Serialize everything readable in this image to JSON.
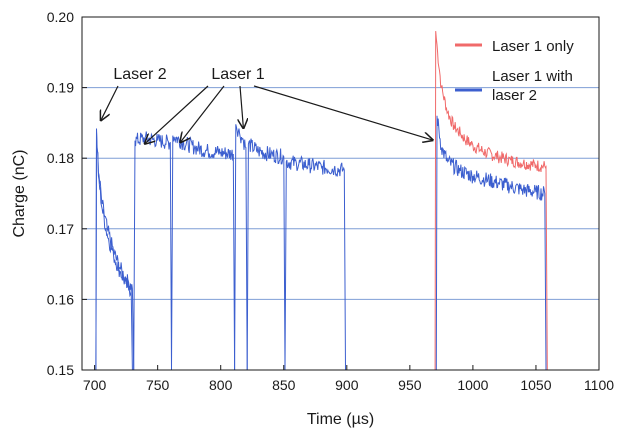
{
  "chart_data": {
    "type": "line",
    "xlabel": "Time (µs)",
    "ylabel": "Charge (nC)",
    "xlim": [
      690,
      1100
    ],
    "ylim": [
      0.15,
      0.2
    ],
    "xticks": [
      700,
      750,
      800,
      850,
      900,
      950,
      1000,
      1050,
      1100
    ],
    "yticks": [
      0.15,
      0.16,
      0.17,
      0.18,
      0.19,
      0.2
    ],
    "xtick_labels": [
      "700",
      "750",
      "800",
      "850",
      "900",
      "950",
      "1000",
      "1050",
      "1100"
    ],
    "ytick_labels": [
      "0.15",
      "0.16",
      "0.17",
      "0.18",
      "0.19",
      "0.20"
    ],
    "grid": "horizontal",
    "legend_position": "top-right",
    "colors": {
      "laser1_only": "#f06a6a",
      "laser1_with_laser2": "#3c5fcf",
      "grid": "#7f9ed6"
    },
    "annotations": [
      {
        "text": "Laser 2",
        "arrow_targets": [
          [
            705,
            0.1848
          ]
        ]
      },
      {
        "text": "Laser 1",
        "arrow_targets": [
          [
            740,
            0.1815
          ],
          [
            768,
            0.1817
          ],
          [
            818,
            0.1837
          ],
          [
            968,
            0.182
          ]
        ]
      }
    ],
    "series": [
      {
        "name": "Laser 1 only",
        "color": "#f06a6a",
        "points": [
          [
            970,
            0.15
          ],
          [
            970.5,
            0.198
          ],
          [
            972,
            0.195
          ],
          [
            975,
            0.19
          ],
          [
            980,
            0.1865
          ],
          [
            985,
            0.1845
          ],
          [
            990,
            0.1835
          ],
          [
            995,
            0.1825
          ],
          [
            1000,
            0.1818
          ],
          [
            1010,
            0.1808
          ],
          [
            1020,
            0.1802
          ],
          [
            1030,
            0.1797
          ],
          [
            1040,
            0.1793
          ],
          [
            1050,
            0.179
          ],
          [
            1058,
            0.1788
          ],
          [
            1059,
            0.15
          ]
        ]
      },
      {
        "name": "Laser 1 with laser 2",
        "color": "#3c5fcf",
        "segments": [
          [
            [
              701,
              0.15
            ],
            [
              701.5,
              0.1838
            ],
            [
              703,
              0.178
            ],
            [
              706,
              0.1735
            ],
            [
              710,
              0.17
            ],
            [
              715,
              0.1668
            ],
            [
              720,
              0.1645
            ],
            [
              725,
              0.1628
            ],
            [
              730,
              0.1615
            ],
            [
              731,
              0.15
            ]
          ],
          [
            [
              701,
              0.15
            ],
            [
              701.5,
              0.1842
            ],
            [
              703,
              0.1775
            ],
            [
              706,
              0.1728
            ],
            [
              710,
              0.1692
            ],
            [
              715,
              0.1663
            ],
            [
              720,
              0.164
            ],
            [
              725,
              0.1622
            ],
            [
              729,
              0.1612
            ],
            [
              730,
              0.15
            ]
          ],
          [
            [
              731,
              0.15
            ],
            [
              732,
              0.1825
            ],
            [
              740,
              0.1828
            ],
            [
              750,
              0.1825
            ],
            [
              760,
              0.1822
            ],
            [
              761,
              0.15
            ]
          ],
          [
            [
              761,
              0.15
            ],
            [
              762,
              0.1832
            ],
            [
              770,
              0.1822
            ],
            [
              780,
              0.1815
            ],
            [
              790,
              0.181
            ],
            [
              800,
              0.1808
            ],
            [
              810,
              0.1806
            ],
            [
              811,
              0.15
            ]
          ],
          [
            [
              811,
              0.15
            ],
            [
              812,
              0.1848
            ],
            [
              815,
              0.1835
            ],
            [
              818,
              0.1825
            ],
            [
              820,
              0.1815
            ],
            [
              821,
              0.15
            ]
          ],
          [
            [
              821,
              0.15
            ],
            [
              822,
              0.182
            ],
            [
              830,
              0.181
            ],
            [
              840,
              0.1805
            ],
            [
              850,
              0.1802
            ],
            [
              851,
              0.15
            ]
          ],
          [
            [
              851,
              0.15
            ],
            [
              852,
              0.1795
            ],
            [
              860,
              0.1793
            ],
            [
              870,
              0.179
            ],
            [
              880,
              0.1787
            ],
            [
              890,
              0.1785
            ],
            [
              898,
              0.1783
            ],
            [
              899,
              0.15
            ]
          ],
          [
            [
              971,
              0.15
            ],
            [
              971.5,
              0.186
            ],
            [
              975,
              0.1815
            ],
            [
              980,
              0.1795
            ],
            [
              990,
              0.1782
            ],
            [
              1000,
              0.1775
            ],
            [
              1010,
              0.177
            ],
            [
              1020,
              0.1765
            ],
            [
              1030,
              0.176
            ],
            [
              1040,
              0.1755
            ],
            [
              1050,
              0.1752
            ],
            [
              1057,
              0.175
            ],
            [
              1058,
              0.15
            ]
          ]
        ]
      }
    ]
  }
}
